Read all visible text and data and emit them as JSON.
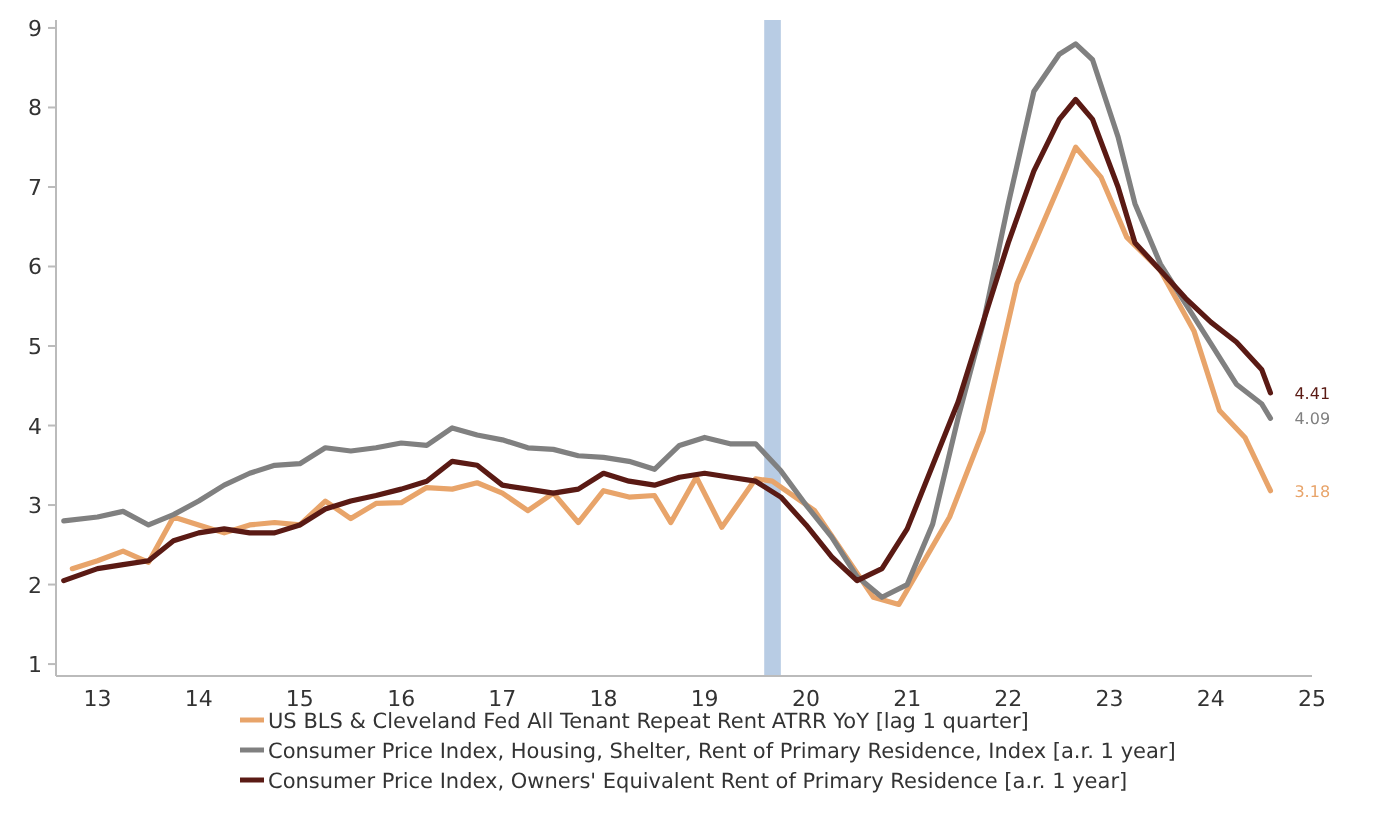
{
  "chart_data": {
    "type": "line",
    "xlim": [
      "2013-02",
      "2025-07"
    ],
    "ylim": [
      0.85,
      9.1
    ],
    "xticks": [
      {
        "value": "2013-07",
        "label": "13"
      },
      {
        "value": "2014-07",
        "label": "14"
      },
      {
        "value": "2015-07",
        "label": "15"
      },
      {
        "value": "2016-07",
        "label": "16"
      },
      {
        "value": "2017-07",
        "label": "17"
      },
      {
        "value": "2018-07",
        "label": "18"
      },
      {
        "value": "2019-07",
        "label": "19"
      },
      {
        "value": "2020-07",
        "label": "20"
      },
      {
        "value": "2021-07",
        "label": "21"
      },
      {
        "value": "2022-07",
        "label": "22"
      },
      {
        "value": "2023-07",
        "label": "23"
      },
      {
        "value": "2024-07",
        "label": "24"
      },
      {
        "value": "2025-07",
        "label": "25"
      }
    ],
    "yticks": [
      1,
      2,
      3,
      4,
      5,
      6,
      7,
      8,
      9
    ],
    "grid": false,
    "legend": "bottom",
    "marker": "none",
    "line_style": "solid",
    "bands": [
      {
        "axis": "x",
        "from": "2020-02",
        "to": "2020-04",
        "color": "#b8cce4"
      }
    ],
    "series": [
      {
        "name": "US BLS & Cleveland Fed All Tenant Repeat Rent ATRR YoY [lag 1 quarter]",
        "color": "#e8a46a",
        "x": [
          "2013-04",
          "2013-07",
          "2013-10",
          "2014-01",
          "2014-04",
          "2014-07",
          "2014-10",
          "2015-01",
          "2015-04",
          "2015-07",
          "2015-10",
          "2016-01",
          "2016-04",
          "2016-07",
          "2016-10",
          "2017-01",
          "2017-04",
          "2017-07",
          "2017-10",
          "2018-01",
          "2018-04",
          "2018-07",
          "2018-10",
          "2019-01",
          "2019-03",
          "2019-06",
          "2019-09",
          "2020-01",
          "2020-03",
          "2020-08",
          "2021-03",
          "2021-06",
          "2021-12",
          "2022-04",
          "2022-08",
          "2023-03",
          "2023-06",
          "2023-09",
          "2024-01",
          "2024-05",
          "2024-08",
          "2024-11",
          "2025-02"
        ],
        "values": [
          2.2,
          2.3,
          2.42,
          2.28,
          2.85,
          2.75,
          2.65,
          2.75,
          2.78,
          2.75,
          3.05,
          2.83,
          3.02,
          3.03,
          3.22,
          3.2,
          3.28,
          3.15,
          2.93,
          3.15,
          2.78,
          3.18,
          3.1,
          3.12,
          2.78,
          3.35,
          2.72,
          3.33,
          3.3,
          2.93,
          1.84,
          1.75,
          2.85,
          3.93,
          5.78,
          7.5,
          7.12,
          6.37,
          5.95,
          5.19,
          4.19,
          3.85,
          3.18
        ],
        "value_labels": [
          null,
          null,
          null,
          null,
          null,
          null,
          null,
          null,
          null,
          null,
          null,
          null,
          null,
          null,
          null,
          null,
          null,
          null,
          null,
          null,
          null,
          null,
          null,
          null,
          null,
          null,
          null,
          null,
          null,
          null,
          null,
          null,
          null,
          null,
          null,
          null,
          null,
          null,
          null,
          null,
          null,
          null,
          "3.18"
        ]
      },
      {
        "name": "Consumer Price Index, Housing, Shelter, Rent of Primary Residence, Index [a.r. 1 year]",
        "color": "#808080",
        "x": [
          "2013-03",
          "2013-07",
          "2013-10",
          "2014-01",
          "2014-04",
          "2014-07",
          "2014-10",
          "2015-01",
          "2015-04",
          "2015-07",
          "2015-10",
          "2016-01",
          "2016-04",
          "2016-07",
          "2016-10",
          "2017-01",
          "2017-04",
          "2017-07",
          "2017-10",
          "2018-01",
          "2018-04",
          "2018-07",
          "2018-10",
          "2019-01",
          "2019-04",
          "2019-07",
          "2019-10",
          "2020-01",
          "2020-04",
          "2020-07",
          "2020-10",
          "2021-01",
          "2021-04",
          "2021-07",
          "2021-10",
          "2022-01",
          "2022-04",
          "2022-07",
          "2022-10",
          "2023-01",
          "2023-03",
          "2023-05",
          "2023-08",
          "2023-10",
          "2024-01",
          "2024-04",
          "2024-07",
          "2024-10",
          "2025-01",
          "2025-02"
        ],
        "values": [
          2.8,
          2.85,
          2.92,
          2.75,
          2.88,
          3.05,
          3.25,
          3.4,
          3.5,
          3.52,
          3.72,
          3.68,
          3.72,
          3.78,
          3.75,
          3.97,
          3.88,
          3.82,
          3.72,
          3.7,
          3.62,
          3.6,
          3.55,
          3.45,
          3.75,
          3.85,
          3.77,
          3.77,
          3.43,
          3.0,
          2.6,
          2.1,
          1.84,
          2.0,
          2.76,
          4.1,
          5.28,
          6.79,
          8.2,
          8.67,
          8.8,
          8.6,
          7.63,
          6.79,
          6.03,
          5.53,
          5.03,
          4.52,
          4.27,
          4.09
        ],
        "value_labels": [
          null,
          null,
          null,
          null,
          null,
          null,
          null,
          null,
          null,
          null,
          null,
          null,
          null,
          null,
          null,
          null,
          null,
          null,
          null,
          null,
          null,
          null,
          null,
          null,
          null,
          null,
          null,
          null,
          null,
          null,
          null,
          null,
          null,
          null,
          null,
          null,
          null,
          null,
          null,
          null,
          null,
          null,
          null,
          null,
          null,
          null,
          null,
          null,
          null,
          "4.09"
        ]
      },
      {
        "name": "Consumer Price Index, Owners' Equivalent Rent of Primary Residence [a.r. 1 year]",
        "color": "#5a1a14",
        "x": [
          "2013-03",
          "2013-07",
          "2013-10",
          "2014-01",
          "2014-04",
          "2014-07",
          "2014-10",
          "2015-01",
          "2015-04",
          "2015-07",
          "2015-10",
          "2016-01",
          "2016-04",
          "2016-07",
          "2016-10",
          "2017-01",
          "2017-04",
          "2017-07",
          "2017-10",
          "2018-01",
          "2018-04",
          "2018-07",
          "2018-10",
          "2019-01",
          "2019-04",
          "2019-07",
          "2019-10",
          "2020-01",
          "2020-04",
          "2020-07",
          "2020-10",
          "2021-01",
          "2021-04",
          "2021-07",
          "2021-10",
          "2022-01",
          "2022-04",
          "2022-07",
          "2022-10",
          "2023-01",
          "2023-03",
          "2023-05",
          "2023-08",
          "2023-10",
          "2024-01",
          "2024-04",
          "2024-07",
          "2024-10",
          "2025-01",
          "2025-02"
        ],
        "values": [
          2.05,
          2.2,
          2.25,
          2.3,
          2.55,
          2.65,
          2.7,
          2.65,
          2.65,
          2.75,
          2.95,
          3.05,
          3.12,
          3.2,
          3.3,
          3.55,
          3.5,
          3.25,
          3.2,
          3.15,
          3.2,
          3.4,
          3.3,
          3.25,
          3.35,
          3.4,
          3.35,
          3.3,
          3.1,
          2.75,
          2.35,
          2.05,
          2.2,
          2.7,
          3.5,
          4.3,
          5.3,
          6.3,
          7.2,
          7.85,
          8.1,
          7.85,
          7.0,
          6.3,
          5.95,
          5.6,
          5.3,
          5.05,
          4.7,
          4.41
        ],
        "value_labels": [
          null,
          null,
          null,
          null,
          null,
          null,
          null,
          null,
          null,
          null,
          null,
          null,
          null,
          null,
          null,
          null,
          null,
          null,
          null,
          null,
          null,
          null,
          null,
          null,
          null,
          null,
          null,
          null,
          null,
          null,
          null,
          null,
          null,
          null,
          null,
          null,
          null,
          null,
          null,
          null,
          null,
          null,
          null,
          null,
          null,
          null,
          null,
          null,
          null,
          "4.41"
        ]
      }
    ]
  }
}
